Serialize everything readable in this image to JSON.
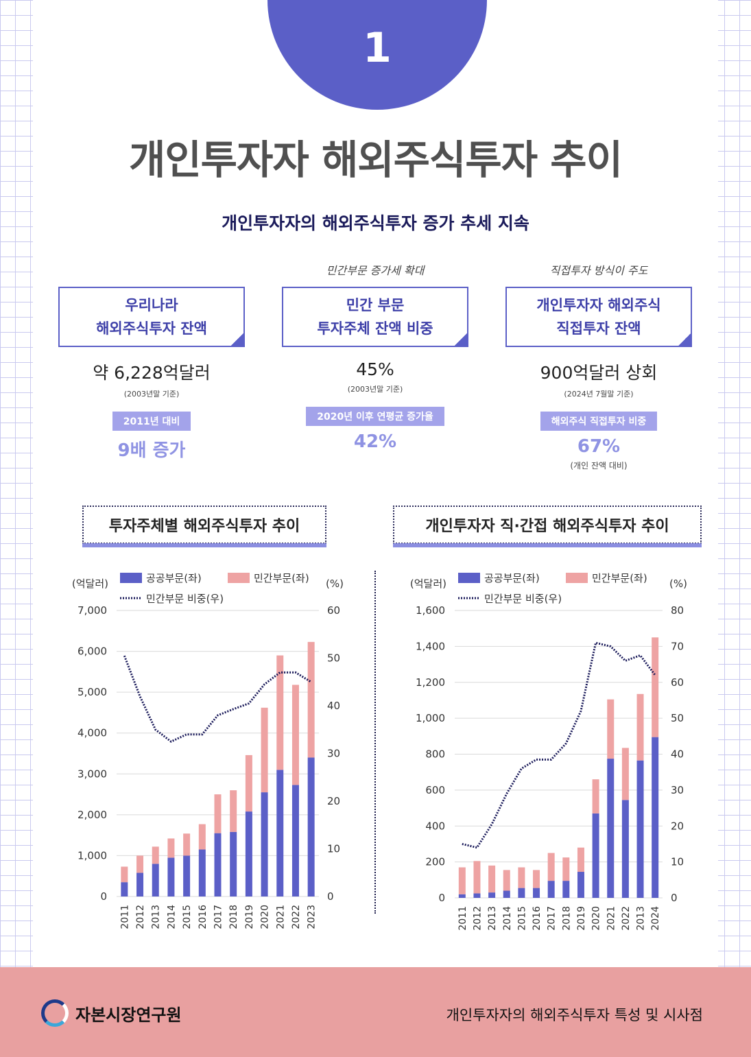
{
  "badge_number": "1",
  "title": "개인투자자 해외주식투자 추이",
  "subtitle": "개인투자자의 해외주식투자 증가 추세 지속",
  "kpis": [
    {
      "caption": "",
      "line1": "우리나라",
      "line2": "해외주식투자 잔액",
      "value": "약 6,228억달러",
      "note": "(2003년말 기준)",
      "badge": "2011년 대비",
      "big": "9배 증가",
      "note2": ""
    },
    {
      "caption": "민간부문 증가세 확대",
      "line1": "민간 부문",
      "line2": "투자주체 잔액 비중",
      "value": "45%",
      "note": "(2003년말 기준)",
      "badge": "2020년 이후 연평균 증가율",
      "big": "42%",
      "note2": ""
    },
    {
      "caption": "직접투자 방식이 주도",
      "line1": "개인투자자 해외주식",
      "line2": "직접투자 잔액",
      "value": "900억달러 상회",
      "note": "(2024년 7월말 기준)",
      "badge": "해외주식 직접투자 비중",
      "big": "67%",
      "note2": "(개인 잔액 대비)"
    }
  ],
  "sections": {
    "left": "투자주체별 해외주식투자 추이",
    "right": "개인투자자 직·간접 해외주식투자 추이"
  },
  "colors": {
    "public": "#5b5fc7",
    "private": "#eea3a3",
    "line": "#1a1a5a",
    "accent": "#5b5fc7",
    "footer": "#e8a0a0"
  },
  "chart_data": [
    {
      "type": "bar",
      "stacked": true,
      "categories": [
        "2011",
        "2012",
        "2013",
        "2014",
        "2015",
        "2016",
        "2017",
        "2018",
        "2019",
        "2020",
        "2021",
        "2022",
        "2023"
      ],
      "series": [
        {
          "name": "공공부문(좌)",
          "values": [
            350,
            580,
            800,
            950,
            1000,
            1150,
            1550,
            1580,
            2080,
            2550,
            3100,
            2730,
            3400
          ]
        },
        {
          "name": "민간부문(좌)",
          "values": [
            380,
            420,
            420,
            470,
            540,
            620,
            950,
            1020,
            1380,
            2070,
            2800,
            2450,
            2830
          ]
        },
        {
          "name": "민간부문 비중(우)",
          "axis": "right",
          "render": "dotted-line",
          "values": [
            50.5,
            42,
            35,
            32.5,
            34,
            34,
            38,
            39.3,
            40.5,
            44.5,
            47,
            47,
            45
          ]
        }
      ],
      "ylabel_left": "(억달러)",
      "ylabel_right": "(%)",
      "ylim_left": [
        0,
        7000
      ],
      "ylim_right": [
        0,
        60
      ],
      "yticks_left": [
        "0",
        "1,000",
        "2,000",
        "3,000",
        "4,000",
        "5,000",
        "6,000",
        "7,000"
      ],
      "yticks_right": [
        "0",
        "10",
        "20",
        "30",
        "40",
        "50",
        "60"
      ],
      "legend": "top"
    },
    {
      "type": "bar",
      "stacked": true,
      "categories": [
        "2011",
        "2012",
        "2013",
        "2014",
        "2015",
        "2016",
        "2017",
        "2018",
        "2019",
        "2020",
        "2021",
        "2022",
        "2013",
        "2024"
      ],
      "series": [
        {
          "name": "공공부문(좌)",
          "values": [
            20,
            25,
            30,
            40,
            55,
            55,
            95,
            95,
            145,
            470,
            775,
            545,
            765,
            895
          ]
        },
        {
          "name": "민간부문(좌)",
          "values": [
            150,
            180,
            150,
            115,
            115,
            100,
            155,
            130,
            135,
            190,
            330,
            290,
            370,
            555
          ]
        },
        {
          "name": "민간부문 비중(우)",
          "axis": "right",
          "render": "dotted-line",
          "values": [
            15,
            14,
            20.5,
            29,
            36,
            38.5,
            38.5,
            43,
            52,
            71,
            70,
            66,
            67.5,
            62
          ]
        }
      ],
      "ylabel_left": "(억달러)",
      "ylabel_right": "(%)",
      "ylim_left": [
        0,
        1600
      ],
      "ylim_right": [
        0,
        80
      ],
      "yticks_left": [
        "0",
        "200",
        "400",
        "600",
        "800",
        "1,000",
        "1,200",
        "1,400",
        "1,600"
      ],
      "yticks_right": [
        "0",
        "10",
        "20",
        "30",
        "40",
        "50",
        "60",
        "70",
        "80"
      ],
      "legend": "top"
    }
  ],
  "footer": {
    "org": "자본시장연구원",
    "doc": "개인투자자의 해외주식투자 특성 및 시사점"
  }
}
